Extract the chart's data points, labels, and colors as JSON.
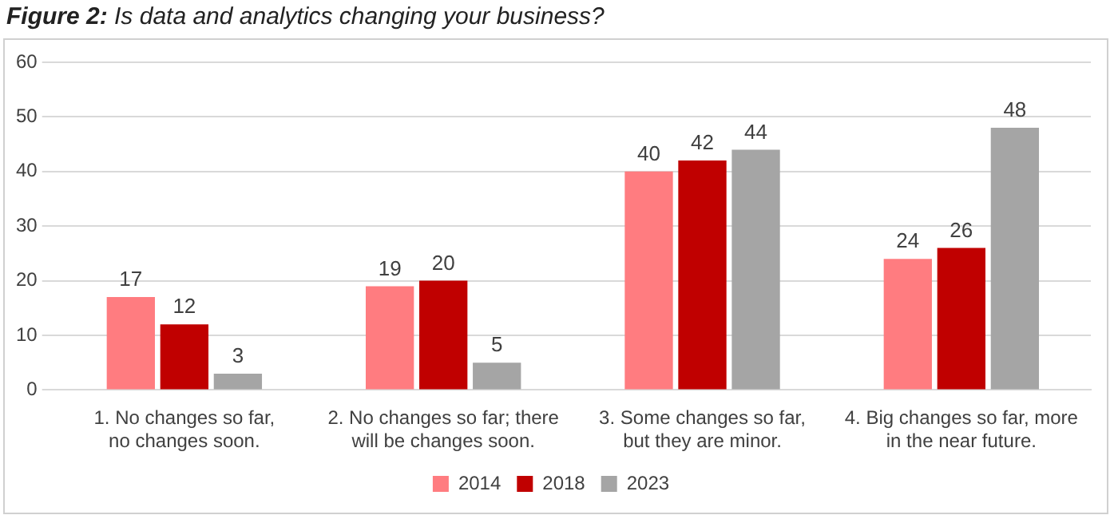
{
  "chart_data": {
    "type": "bar",
    "title": "Figure 2: Is data and analytics changing your business?",
    "categories": [
      "1. No changes so far, no changes soon.",
      "2. No changes so far; there will be changes soon.",
      "3. Some changes so far, but they are minor.",
      "4. Big changes so far, more in the near future."
    ],
    "series": [
      {
        "name": "2014",
        "color": "#ff7c80",
        "values": [
          17,
          19,
          40,
          24
        ]
      },
      {
        "name": "2018",
        "color": "#c00000",
        "values": [
          12,
          20,
          42,
          26
        ]
      },
      {
        "name": "2023",
        "color": "#a5a5a5",
        "values": [
          3,
          5,
          44,
          48
        ]
      }
    ],
    "ylim": [
      0,
      60
    ],
    "yticks": [
      0,
      10,
      20,
      30,
      40,
      50,
      60
    ],
    "grid": "y",
    "legend": "bottom",
    "data_labels": true
  }
}
